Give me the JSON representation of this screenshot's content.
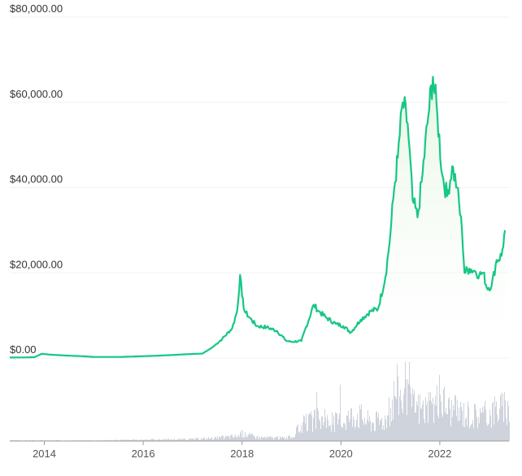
{
  "chart_data": {
    "type": "area",
    "title": "",
    "xlabel": "",
    "ylabel": "",
    "xlim": [
      2013.3,
      2023.4
    ],
    "ylim": [
      0,
      80000
    ],
    "y_ticks": [
      {
        "value": 80000,
        "label": "$80,000.00"
      },
      {
        "value": 60000,
        "label": "$60,000.00"
      },
      {
        "value": 40000,
        "label": "$40,000.00"
      },
      {
        "value": 20000,
        "label": "$20,000.00"
      },
      {
        "value": 0,
        "label": "$0.00"
      }
    ],
    "x_ticks": [
      {
        "value": 2014,
        "label": "2014"
      },
      {
        "value": 2016,
        "label": "2016"
      },
      {
        "value": 2018,
        "label": "2018"
      },
      {
        "value": 2020,
        "label": "2020"
      },
      {
        "value": 2022,
        "label": "2022"
      }
    ],
    "grid": true,
    "colors": {
      "price_line": "#16c784",
      "area_top": "#e6f6e3",
      "volume": "#cfd3dc",
      "axis": "#999999",
      "grid": "#eff2f5"
    },
    "series": [
      {
        "kind": "price",
        "x": [
          2013.3,
          2013.6,
          2013.8,
          2013.95,
          2014.1,
          2014.4,
          2014.8,
          2015.0,
          2015.5,
          2016.0,
          2016.5,
          2016.9,
          2017.2,
          2017.4,
          2017.6,
          2017.8,
          2017.9,
          2017.96,
          2018.0,
          2018.05,
          2018.15,
          2018.3,
          2018.5,
          2018.7,
          2018.9,
          2019.0,
          2019.2,
          2019.45,
          2019.55,
          2019.7,
          2019.9,
          2020.05,
          2020.2,
          2020.4,
          2020.6,
          2020.75,
          2020.9,
          2021.0,
          2021.08,
          2021.15,
          2021.25,
          2021.35,
          2021.45,
          2021.55,
          2021.65,
          2021.75,
          2021.86,
          2021.95,
          2022.05,
          2022.15,
          2022.25,
          2022.35,
          2022.45,
          2022.5,
          2022.6,
          2022.7,
          2022.8,
          2022.88,
          2022.95,
          2023.05,
          2023.15,
          2023.25,
          2023.32
        ],
        "y": [
          120,
          130,
          200,
          1000,
          800,
          600,
          400,
          250,
          240,
          420,
          650,
          900,
          1050,
          2500,
          4500,
          7000,
          11000,
          19500,
          14500,
          11000,
          9500,
          7500,
          7200,
          6400,
          4000,
          3800,
          4000,
          12500,
          11000,
          9500,
          8000,
          7500,
          6000,
          9000,
          11000,
          11500,
          19000,
          29000,
          40000,
          47000,
          60000,
          55000,
          37000,
          33000,
          43000,
          55000,
          66000,
          57000,
          43000,
          38000,
          45000,
          40000,
          30000,
          20000,
          21000,
          20500,
          19500,
          20000,
          16500,
          17000,
          23000,
          24000,
          30000
        ]
      },
      {
        "kind": "volume",
        "x": [
          2013.3,
          2014.0,
          2015.0,
          2016.0,
          2017.0,
          2017.5,
          2017.9,
          2018.0,
          2018.3,
          2018.8,
          2019.0,
          2019.2,
          2019.5,
          2019.8,
          2020.0,
          2020.3,
          2020.6,
          2020.9,
          2021.0,
          2021.1,
          2021.3,
          2021.5,
          2021.8,
          2022.0,
          2022.2,
          2022.5,
          2022.8,
          2023.0,
          2023.2,
          2023.32
        ],
        "y": [
          0.01,
          0.01,
          0.01,
          0.02,
          0.03,
          0.05,
          0.08,
          0.12,
          0.06,
          0.05,
          0.06,
          0.25,
          0.35,
          0.3,
          0.32,
          0.45,
          0.3,
          0.35,
          0.5,
          0.85,
          0.65,
          0.55,
          0.5,
          0.7,
          0.5,
          0.45,
          0.4,
          0.45,
          0.55,
          0.5
        ]
      }
    ]
  }
}
